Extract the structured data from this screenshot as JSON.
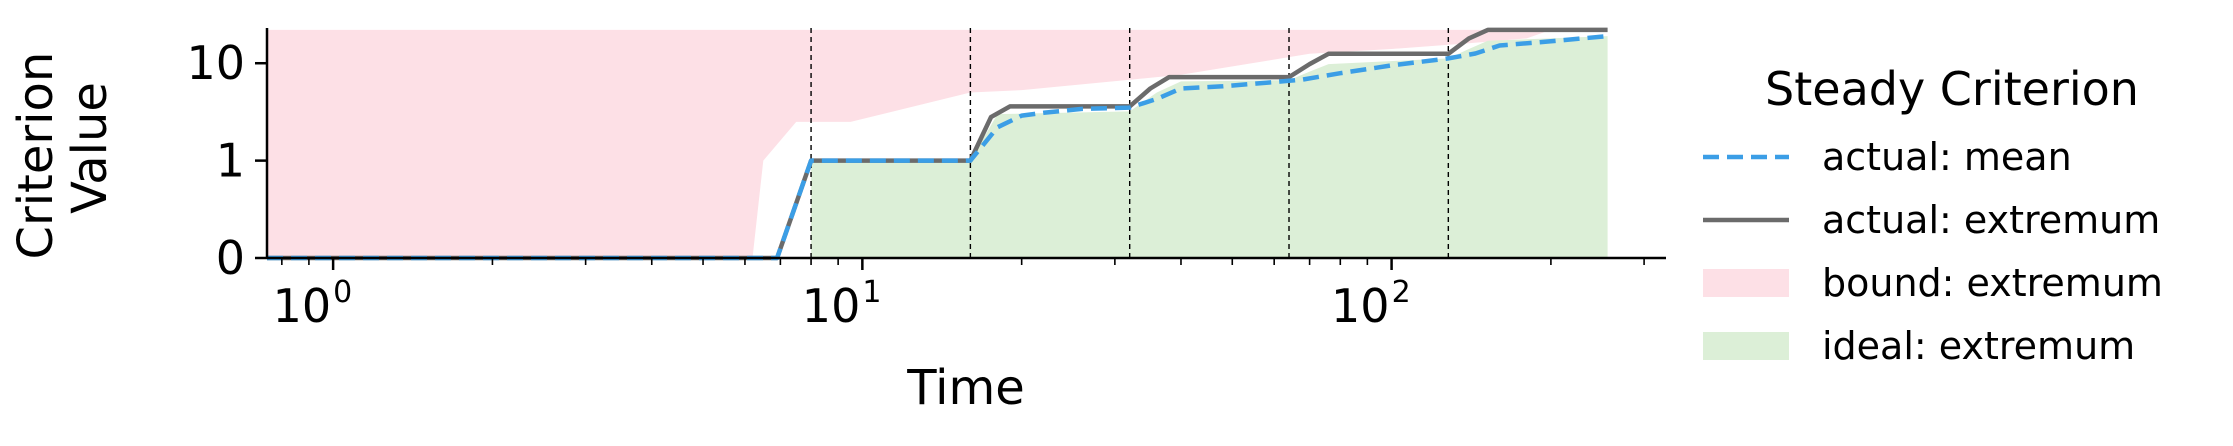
{
  "chart_data": {
    "type": "line",
    "xlabel": "Time",
    "ylabel": [
      "Criterion",
      "Value"
    ],
    "x_scale": "log",
    "xlim": [
      0.75,
      330
    ],
    "y_scale": "symlog",
    "ylim": [
      0,
      23
    ],
    "x_ticks": [
      {
        "base": "10",
        "exp": "0",
        "value": 1
      },
      {
        "base": "10",
        "exp": "1",
        "value": 10
      },
      {
        "base": "10",
        "exp": "2",
        "value": 100
      }
    ],
    "y_ticks": [
      {
        "label": "0",
        "value": 0
      },
      {
        "label": "1",
        "value": 1
      },
      {
        "label": "10",
        "value": 10
      }
    ],
    "vlines": [
      8,
      16,
      32,
      64,
      128
    ],
    "grid": false,
    "legend": {
      "title": "Steady Criterion",
      "placement": "right",
      "entries": [
        {
          "label": "actual: mean",
          "kind": "dashed",
          "color": "#3b9ee6"
        },
        {
          "label": "actual: extremum",
          "kind": "line",
          "color": "#6b6b6b"
        },
        {
          "label": "bound: extremum",
          "kind": "patch",
          "color": "#fde0e6"
        },
        {
          "label": "ideal: extremum",
          "kind": "patch",
          "color": "#dcefd7"
        }
      ]
    },
    "series": [
      {
        "name": "actual: mean",
        "style": "dashed",
        "color": "#3b9ee6",
        "x": [
          0.75,
          6.9,
          8,
          16,
          18,
          20,
          22,
          26,
          32,
          36,
          40,
          48,
          56,
          64,
          68,
          80,
          100,
          128,
          144,
          160,
          200,
          256
        ],
        "y": [
          0,
          0,
          1,
          1,
          2.2,
          2.9,
          3.1,
          3.4,
          3.5,
          4.3,
          5.5,
          5.8,
          6.2,
          6.6,
          6.8,
          7.9,
          9.5,
          11.2,
          12.6,
          15.2,
          16.8,
          19
        ]
      },
      {
        "name": "actual: extremum",
        "style": "solid",
        "color": "#6b6b6b",
        "x": [
          0.75,
          6.9,
          8,
          16,
          17.5,
          19,
          32,
          35,
          38,
          64,
          70,
          76,
          128,
          140,
          152,
          256
        ],
        "y": [
          0,
          0,
          1,
          1,
          2.8,
          3.6,
          3.6,
          5.5,
          7.2,
          7.2,
          9.8,
          12.5,
          12.5,
          18,
          22,
          22
        ]
      }
    ],
    "areas": [
      {
        "name": "bound: extremum",
        "color": "#fde0e6",
        "x": [
          0.75,
          6.2,
          6.5,
          7.5,
          9.5,
          16,
          20,
          40,
          70,
          100,
          140,
          180,
          200
        ],
        "upper": [
          22,
          22,
          22,
          22,
          22,
          22,
          22,
          22,
          22,
          22,
          22,
          22,
          22
        ],
        "lower": [
          0,
          0,
          1,
          2.5,
          2.5,
          5,
          5.3,
          7.6,
          12.5,
          14,
          16,
          18,
          22
        ]
      },
      {
        "name": "ideal: extremum",
        "color": "#dcefd7",
        "x": [
          8,
          16,
          18,
          32,
          36,
          40,
          64,
          70,
          76,
          128,
          140,
          152,
          256
        ],
        "upper": [
          1,
          1,
          3,
          3.2,
          5,
          6.5,
          6.7,
          8.2,
          9.8,
          11.2,
          14,
          17,
          19
        ],
        "lower": [
          0,
          0,
          0,
          0,
          0,
          0,
          0,
          0,
          0,
          0,
          0,
          0,
          0
        ]
      }
    ]
  }
}
